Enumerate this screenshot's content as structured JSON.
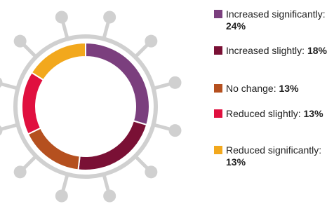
{
  "chart_data": {
    "type": "donut",
    "categories": [
      "Increased significantly:",
      "Increased slightly:",
      "No change:",
      "Reduced slightly:",
      "Reduced significantly:"
    ],
    "values": [
      24,
      18,
      13,
      13,
      13
    ],
    "value_labels": [
      "24%",
      "18%",
      "13%",
      "13%",
      "13%"
    ],
    "colors": [
      "#7b3f7e",
      "#7a1035",
      "#b5501f",
      "#e0103f",
      "#f2a81d"
    ]
  }
}
